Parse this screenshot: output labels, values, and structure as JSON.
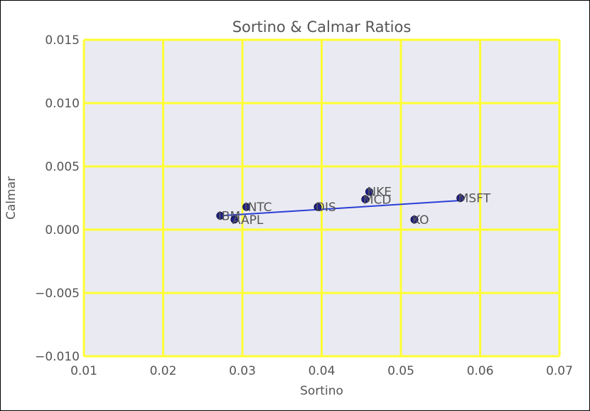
{
  "chart_data": {
    "type": "scatter",
    "title": "Sortino & Calmar Ratios",
    "xlabel": "Sortino",
    "ylabel": "Calmar",
    "xlim": [
      0.01,
      0.07
    ],
    "ylim": [
      -0.01,
      0.015
    ],
    "xticks": [
      0.01,
      0.02,
      0.03,
      0.04,
      0.05,
      0.06,
      0.07
    ],
    "yticks": [
      -0.01,
      -0.005,
      0.0,
      0.005,
      0.01,
      0.015
    ],
    "xtick_labels": [
      "0.01",
      "0.02",
      "0.03",
      "0.04",
      "0.05",
      "0.06",
      "0.07"
    ],
    "ytick_labels": [
      "−0.010",
      "−0.005",
      "0.000",
      "0.005",
      "0.010",
      "0.015"
    ],
    "grid": true,
    "points": [
      {
        "label": "IBM",
        "x": 0.0272,
        "y": 0.0011
      },
      {
        "label": "AAPL",
        "x": 0.029,
        "y": 0.0008
      },
      {
        "label": "INTC",
        "x": 0.0305,
        "y": 0.0018
      },
      {
        "label": "DIS",
        "x": 0.0395,
        "y": 0.0018
      },
      {
        "label": "MCD",
        "x": 0.0455,
        "y": 0.0024
      },
      {
        "label": "NKE",
        "x": 0.046,
        "y": 0.003
      },
      {
        "label": "KO",
        "x": 0.0517,
        "y": 0.0008
      },
      {
        "label": "MSFT",
        "x": 0.0575,
        "y": 0.0025
      }
    ],
    "trendline": {
      "x": [
        0.0272,
        0.0575
      ],
      "y": [
        0.0011,
        0.0023
      ]
    },
    "colors": {
      "plot_background": "#eaeaf2",
      "grid": "#ffff33",
      "marker": "#20208a",
      "trendline": "#2b3fd6",
      "text": "#555555"
    }
  }
}
